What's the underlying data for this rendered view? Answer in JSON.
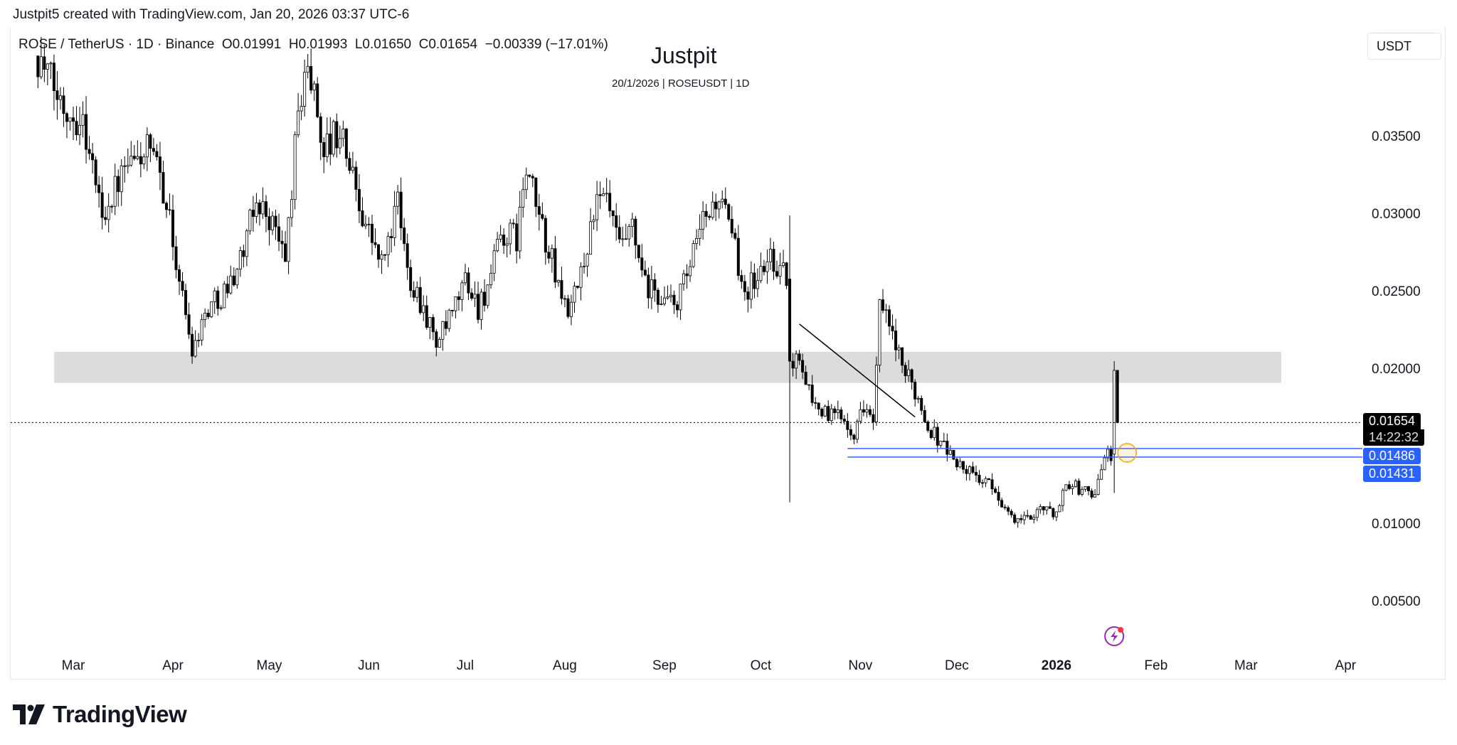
{
  "header": {
    "credit": "Justpit5 created with TradingView.com, Jan 20, 2026 03:37 UTC-6"
  },
  "legend": {
    "symbol": "ROSE / TetherUS · 1D · Binance",
    "open": "O0.01991",
    "high": "H0.01993",
    "low": "L0.01650",
    "close": "C0.01654",
    "change": "−0.00339 (−17.01%)"
  },
  "watermark": {
    "title": "Justpit",
    "subtitle": "20/1/2026 | ROSEUSDT | 1D"
  },
  "currency_button": "USDT",
  "price_tags": {
    "last_price": "0.01654",
    "countdown": "14:22:32",
    "level_1": "0.01486",
    "level_2": "0.01431"
  },
  "colors": {
    "up": "#ffffff",
    "down": "#000000",
    "outline": "#000000",
    "level": "#2962ff",
    "zone": "#dcdcdc",
    "alert_circle": "#f7a600",
    "lightning": "#9c27b0"
  },
  "brand": {
    "name": "TradingView"
  },
  "chart_data": {
    "type": "candlestick",
    "title": "ROSE / TetherUS · 1D · Binance",
    "day0": "2025-03-01",
    "ylim": [
      0.0016,
      0.0432
    ],
    "y_ticks": [
      "0.03500",
      "0.03000",
      "0.02500",
      "0.02000",
      "0.01000",
      "0.00500"
    ],
    "y_tick_values": [
      0.035,
      0.03,
      0.025,
      0.02,
      0.01,
      0.005
    ],
    "x_ticks": [
      {
        "label": "Mar",
        "day": 0
      },
      {
        "label": "Apr",
        "day": 31
      },
      {
        "label": "May",
        "day": 61
      },
      {
        "label": "Jun",
        "day": 92
      },
      {
        "label": "Jul",
        "day": 122
      },
      {
        "label": "Aug",
        "day": 153
      },
      {
        "label": "Sep",
        "day": 184
      },
      {
        "label": "Oct",
        "day": 214
      },
      {
        "label": "Nov",
        "day": 245
      },
      {
        "label": "Dec",
        "day": 275
      },
      {
        "label": "2026",
        "day": 306,
        "bold": true
      },
      {
        "label": "Feb",
        "day": 337
      },
      {
        "label": "Mar",
        "day": 365
      },
      {
        "label": "Apr",
        "day": 396
      }
    ],
    "close_anchors_day_price": [
      [
        -11,
        0.0402
      ],
      [
        -4,
        0.0372
      ],
      [
        3,
        0.036
      ],
      [
        9,
        0.03
      ],
      [
        15,
        0.0324
      ],
      [
        23,
        0.0342
      ],
      [
        28,
        0.0318
      ],
      [
        31,
        0.0282
      ],
      [
        34,
        0.0246
      ],
      [
        37,
        0.0214
      ],
      [
        42,
        0.024
      ],
      [
        48,
        0.0252
      ],
      [
        53,
        0.0276
      ],
      [
        57,
        0.0309
      ],
      [
        62,
        0.0294
      ],
      [
        66,
        0.027
      ],
      [
        69,
        0.0342
      ],
      [
        72,
        0.0396
      ],
      [
        75,
        0.0378
      ],
      [
        78,
        0.0342
      ],
      [
        83,
        0.0354
      ],
      [
        87,
        0.0324
      ],
      [
        91,
        0.0294
      ],
      [
        96,
        0.0267
      ],
      [
        101,
        0.0306
      ],
      [
        104,
        0.0264
      ],
      [
        109,
        0.024
      ],
      [
        113,
        0.0216
      ],
      [
        118,
        0.0234
      ],
      [
        122,
        0.0258
      ],
      [
        126,
        0.024
      ],
      [
        130,
        0.0258
      ],
      [
        133,
        0.0285
      ],
      [
        138,
        0.0285
      ],
      [
        141,
        0.0327
      ],
      [
        144,
        0.0306
      ],
      [
        148,
        0.0276
      ],
      [
        152,
        0.0246
      ],
      [
        155,
        0.0237
      ],
      [
        159,
        0.027
      ],
      [
        162,
        0.0303
      ],
      [
        166,
        0.0309
      ],
      [
        170,
        0.0276
      ],
      [
        174,
        0.0288
      ],
      [
        178,
        0.0252
      ],
      [
        183,
        0.0246
      ],
      [
        187,
        0.024
      ],
      [
        191,
        0.0258
      ],
      [
        196,
        0.0294
      ],
      [
        201,
        0.0312
      ],
      [
        206,
        0.0276
      ],
      [
        209,
        0.0252
      ],
      [
        213,
        0.0258
      ],
      [
        217,
        0.0273
      ],
      [
        222,
        0.0258
      ],
      [
        224,
        0.0199
      ],
      [
        226,
        0.021
      ],
      [
        230,
        0.018
      ],
      [
        235,
        0.0169
      ],
      [
        239,
        0.0171
      ],
      [
        243,
        0.016
      ],
      [
        247,
        0.018
      ],
      [
        249,
        0.0163
      ],
      [
        251,
        0.024
      ],
      [
        255,
        0.0222
      ],
      [
        258,
        0.0199
      ],
      [
        262,
        0.0187
      ],
      [
        266,
        0.0163
      ],
      [
        271,
        0.0151
      ],
      [
        275,
        0.0139
      ],
      [
        279,
        0.0133
      ],
      [
        284,
        0.0127
      ],
      [
        288,
        0.0118
      ],
      [
        292,
        0.0103
      ],
      [
        297,
        0.0103
      ],
      [
        301,
        0.0112
      ],
      [
        305,
        0.0106
      ],
      [
        310,
        0.0127
      ],
      [
        314,
        0.0121
      ],
      [
        318,
        0.0121
      ],
      [
        321,
        0.0142
      ],
      [
        323,
        0.0145
      ]
    ],
    "special_candles": [
      {
        "day": 223,
        "open": 0.0258,
        "high": 0.0299,
        "low": 0.0114,
        "close": 0.0205
      },
      {
        "day": 324,
        "open": 0.0145,
        "high": 0.0205,
        "low": 0.012,
        "close": 0.01991
      },
      {
        "day": 325,
        "open": 0.01991,
        "high": 0.01993,
        "low": 0.0165,
        "close": 0.01654
      }
    ],
    "last_price": 0.01654,
    "drawings": {
      "zone": {
        "price_top": 0.0211,
        "price_bottom": 0.0191,
        "day_start": -6,
        "day_end": 376
      },
      "trendline": {
        "day_start": 226,
        "price_start": 0.0229,
        "day_end": 262,
        "price_end": 0.0169
      },
      "levels": [
        0.01486,
        0.01431
      ],
      "levels_day_start": 241,
      "alert_day": 328
    }
  }
}
